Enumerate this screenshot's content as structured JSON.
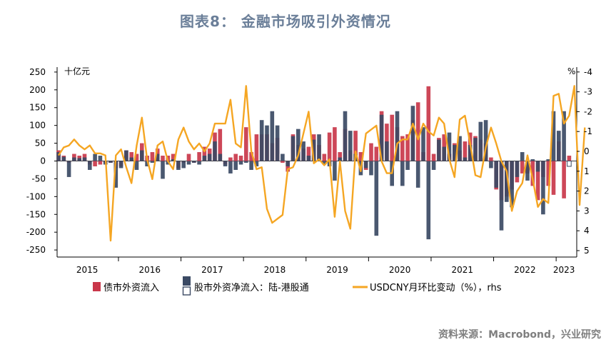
{
  "title": "图表8：  金融市场吸引外资情况",
  "source": "资料来源：Macrobond，兴业研究",
  "chart_data": {
    "type": "bar",
    "left_unit": "十亿元",
    "right_unit": "%",
    "ylim_left": [
      -250,
      250
    ],
    "yticks_left": [
      "250",
      "200",
      "150",
      "100",
      "50",
      "0",
      "-50",
      "-100",
      "-150",
      "-200",
      "-250"
    ],
    "ylim_right": [
      -4,
      5
    ],
    "right_axis_inverted": true,
    "yticks_right": [
      "-4",
      "-3",
      "-2",
      "-1",
      "0",
      "1",
      "2",
      "3",
      "4",
      "5"
    ],
    "x_start": "2015-01",
    "years": [
      "2015",
      "2016",
      "2017",
      "2018",
      "2019",
      "2020",
      "2021",
      "2022",
      "2023"
    ],
    "colors": {
      "bond": "#c9374a",
      "stock": "#3b4a64",
      "fx": "#f5a623"
    },
    "legend": [
      {
        "name": "债市外资流入",
        "kind": "bar",
        "color": "#c9374a"
      },
      {
        "name": "股市外资净流入：陆-港股通",
        "kind": "bar",
        "color": "#3b4a64"
      },
      {
        "name": "USDCNY月环比变动（%），rhs",
        "kind": "line",
        "color": "#f5a623"
      }
    ],
    "series": [
      {
        "name": "债市外资流入",
        "axis": "left",
        "type": "bar",
        "values": [
          30,
          15,
          -5,
          20,
          15,
          20,
          -10,
          -15,
          -10,
          -5,
          -5,
          -20,
          -15,
          30,
          25,
          20,
          50,
          15,
          25,
          35,
          15,
          15,
          20,
          -20,
          -5,
          20,
          -5,
          25,
          40,
          35,
          80,
          90,
          -10,
          10,
          20,
          15,
          95,
          25,
          75,
          75,
          75,
          50,
          65,
          -5,
          -30,
          75,
          45,
          35,
          40,
          75,
          45,
          20,
          80,
          95,
          25,
          90,
          30,
          85,
          25,
          -25,
          50,
          40,
          140,
          105,
          130,
          95,
          70,
          75,
          115,
          165,
          25,
          210,
          20,
          65,
          75,
          20,
          50,
          30,
          55,
          80,
          70,
          60,
          50,
          10,
          -80,
          -110,
          -100,
          -80,
          -60,
          -35,
          -35,
          -70,
          -110,
          -45,
          -70,
          -95,
          55,
          -105,
          15
        ],
        "is_estimate": [
          false
        ]
      },
      {
        "name": "股市外资净流入：陆-港股通",
        "axis": "left",
        "type": "bar",
        "values": [
          25,
          12,
          -45,
          10,
          8,
          10,
          -25,
          20,
          15,
          -10,
          -5,
          -75,
          -20,
          30,
          10,
          -25,
          30,
          -15,
          -5,
          20,
          -50,
          -10,
          5,
          -25,
          -20,
          -10,
          -5,
          -10,
          15,
          20,
          55,
          20,
          -15,
          -35,
          -25,
          -10,
          -5,
          -25,
          -15,
          115,
          100,
          140,
          100,
          20,
          -15,
          70,
          90,
          55,
          15,
          60,
          75,
          -10,
          -15,
          -55,
          10,
          140,
          85,
          20,
          -40,
          -20,
          -40,
          -210,
          130,
          55,
          -70,
          140,
          -70,
          -25,
          155,
          -75,
          95,
          -220,
          -25,
          60,
          40,
          80,
          45,
          70,
          10,
          45,
          65,
          110,
          115,
          -20,
          -75,
          -195,
          -115,
          -130,
          -45,
          25,
          -55,
          5,
          -30,
          -150,
          5,
          140,
          85,
          140,
          -15
        ]
      },
      {
        "name": "USDCNY月环比变动（%），rhs",
        "axis": "right",
        "type": "line",
        "values": [
          0.2,
          -0.2,
          -0.3,
          -0.6,
          -0.3,
          -0.1,
          -0.3,
          0.1,
          0.1,
          0.2,
          4.5,
          0.2,
          -0.1,
          0.8,
          1.6,
          -0.3,
          -1.7,
          0.4,
          1.4,
          -0.3,
          -0.5,
          0.5,
          0.9,
          -0.6,
          -1.2,
          -0.5,
          -0.1,
          -0.4,
          0.0,
          -0.4,
          -1.4,
          -1.4,
          -1.4,
          -2.6,
          -0.4,
          -0.2,
          -3.3,
          0.0,
          0.9,
          0.8,
          2.9,
          3.6,
          3.4,
          3.2,
          0.9,
          0.8,
          0.2,
          -0.9,
          -2.0,
          0.6,
          0.4,
          0.7,
          0.4,
          3.3,
          0.5,
          3.0,
          3.9,
          0.0,
          1.0,
          -0.9,
          -1.1,
          -1.3,
          0.5,
          1.1,
          1.1,
          -0.4,
          -0.6,
          -0.6,
          -1.4,
          -0.6,
          -1.4,
          -1.0,
          -0.8,
          -1.7,
          -1.4,
          0.4,
          1.3,
          -1.6,
          -1.8,
          -0.4,
          1.2,
          1.3,
          -0.2,
          -1.2,
          -0.4,
          0.5,
          1.0,
          3.0,
          2.0,
          1.6,
          0.2,
          1.4,
          2.8,
          2.4,
          2.6,
          -2.8,
          -2.9,
          -1.4,
          -1.8,
          -3.3,
          2.7,
          -1.2
        ]
      }
    ]
  }
}
